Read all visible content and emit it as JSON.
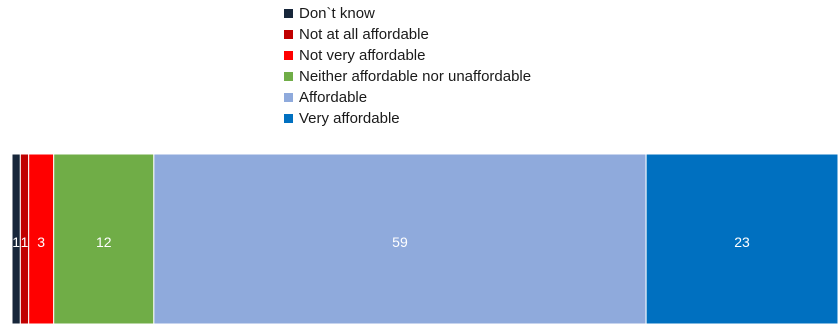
{
  "chart_data": {
    "type": "bar",
    "orientation": "horizontal",
    "stacked": true,
    "title": "",
    "xlabel": "",
    "ylabel": "",
    "xlim": [
      0,
      99
    ],
    "grid": false,
    "legend_position": "top",
    "series": [
      {
        "name": "Don`t know",
        "value": 1,
        "label": "1",
        "color": "#17263a"
      },
      {
        "name": "Not at all affordable",
        "value": 1,
        "label": "1",
        "color": "#c00000"
      },
      {
        "name": "Not very affordable",
        "value": 3,
        "label": "3",
        "color": "#ff0000"
      },
      {
        "name": "Neither affordable nor unaffordable",
        "value": 12,
        "label": "12",
        "color": "#70ad47"
      },
      {
        "name": "Affordable",
        "value": 59,
        "label": "59",
        "color": "#8faadc"
      },
      {
        "name": "Very affordable",
        "value": 23,
        "label": "23",
        "color": "#0070c0"
      }
    ]
  }
}
